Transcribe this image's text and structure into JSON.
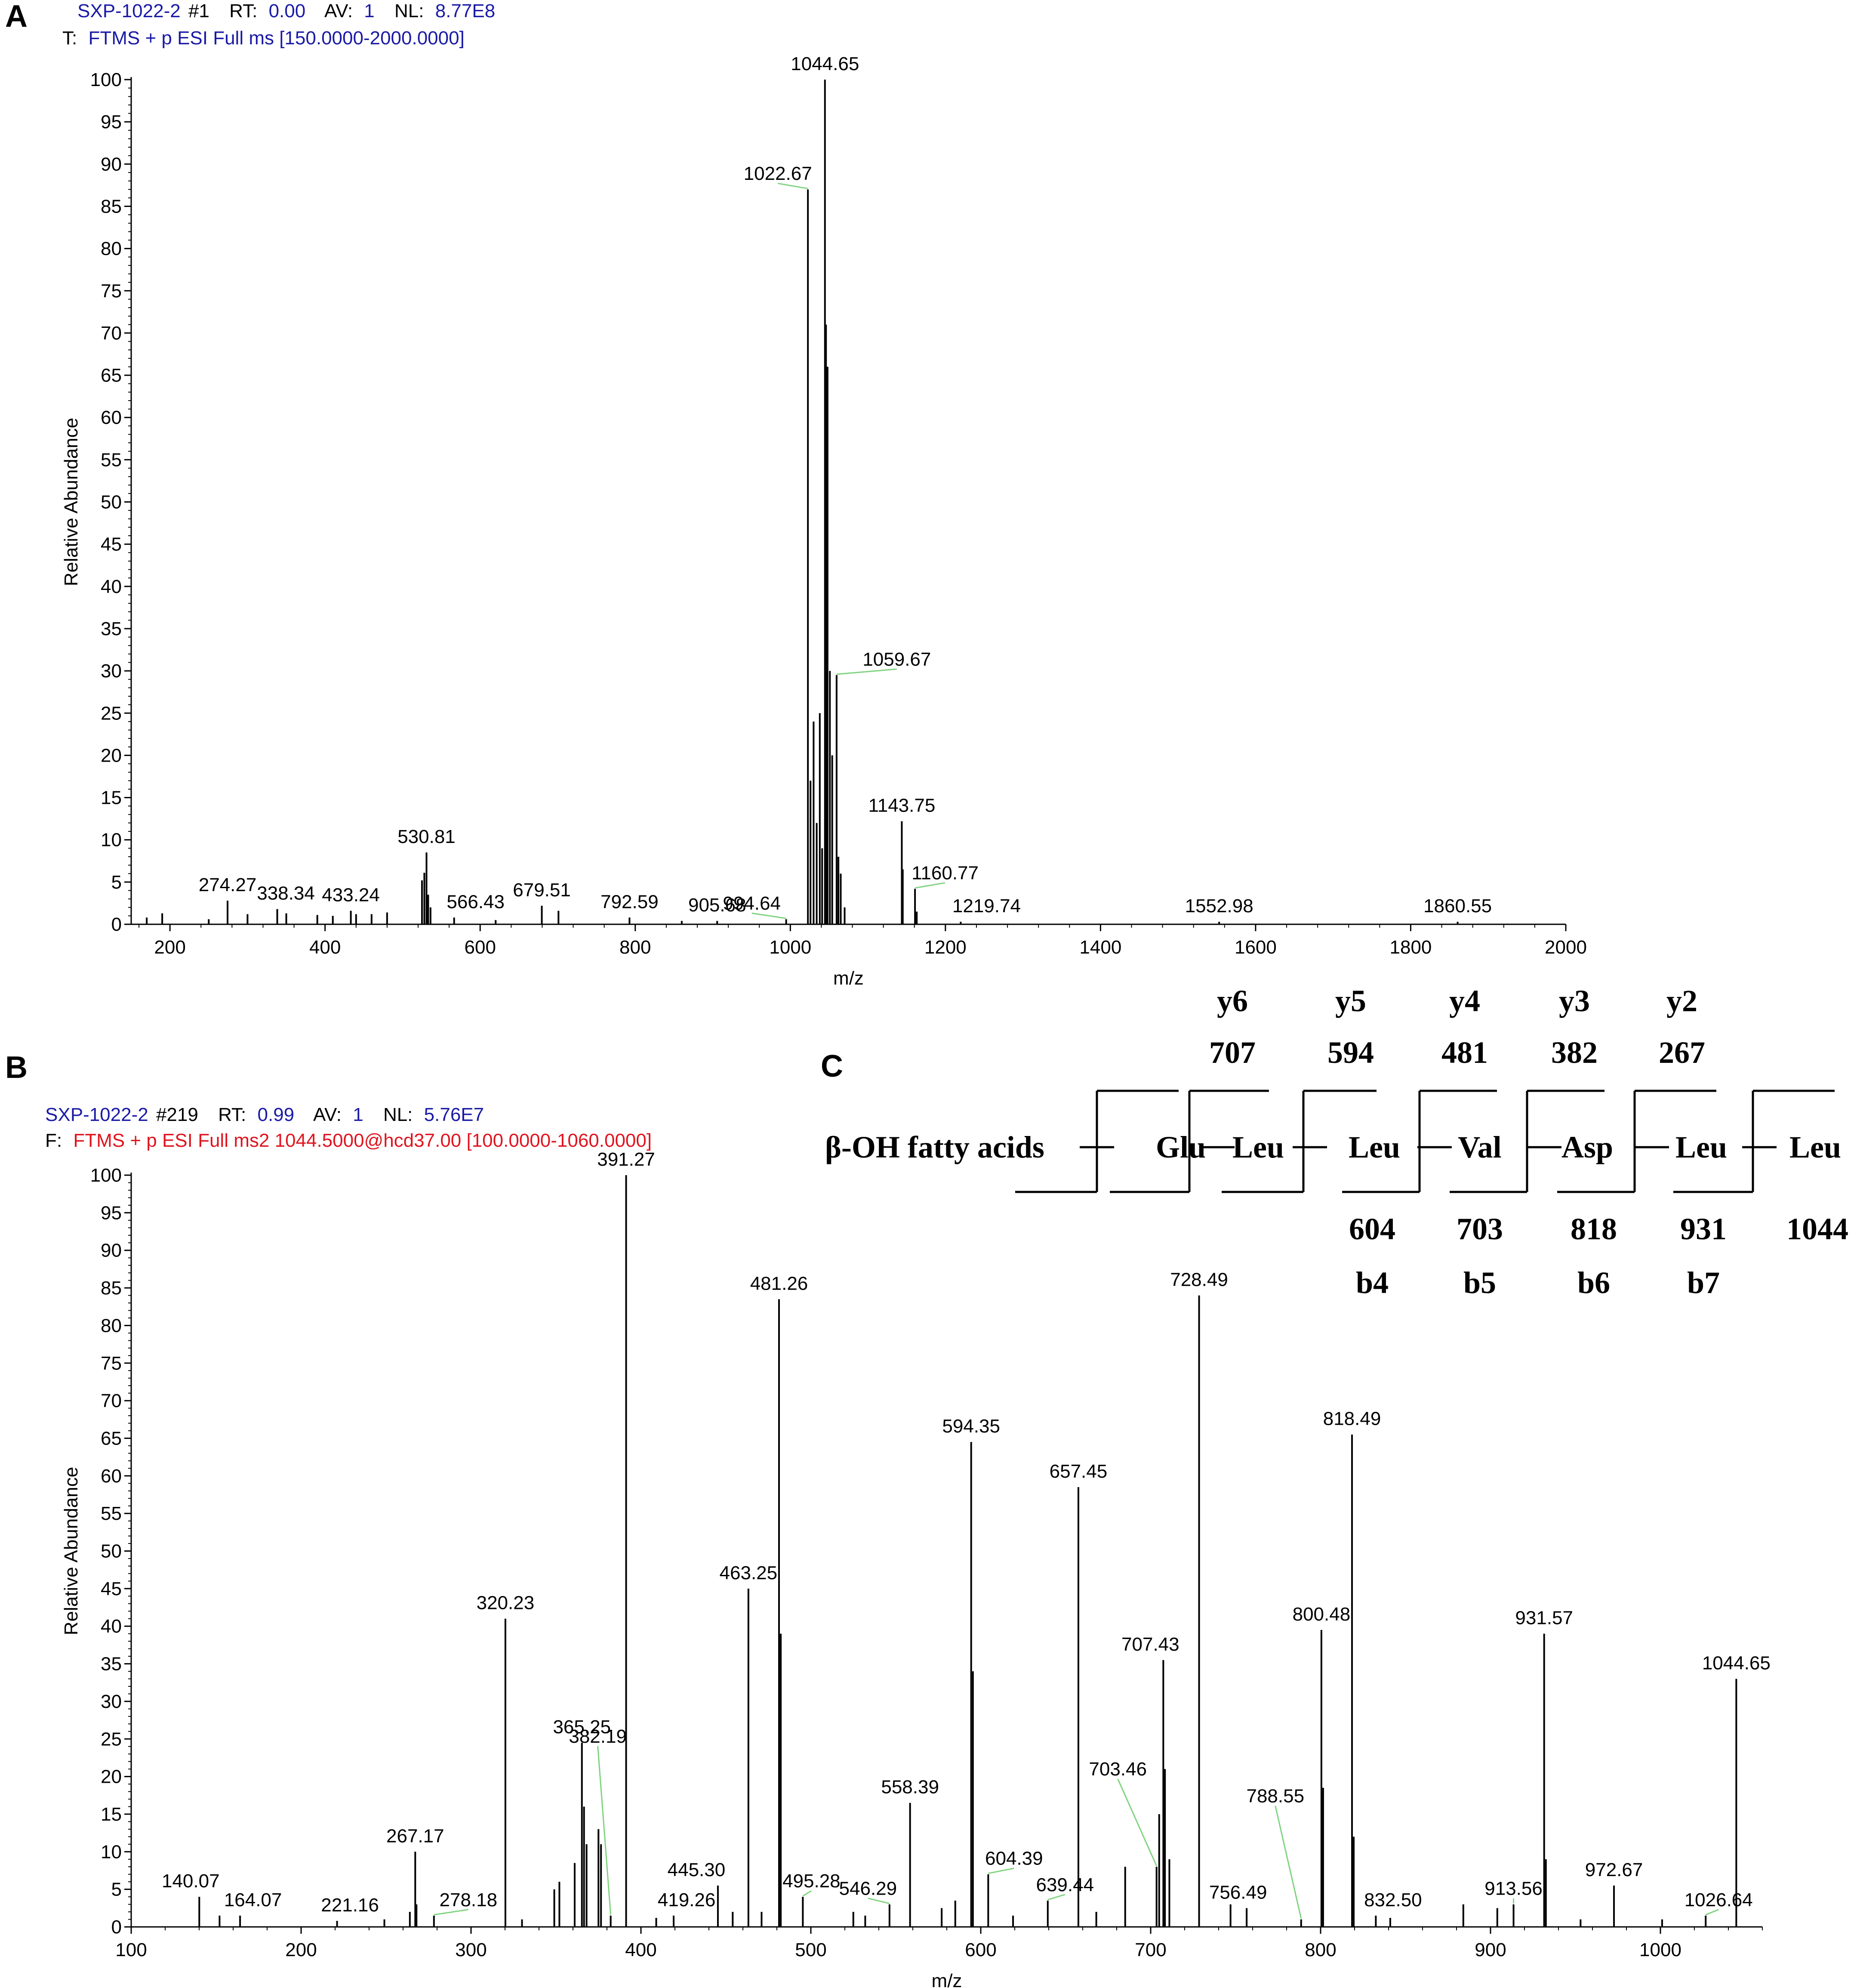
{
  "panels": {
    "a": "A",
    "b": "B",
    "c": "C"
  },
  "colors": {
    "header_blue": "#1a1aa6",
    "header_red": "#e0141e",
    "leader_green": "#7fd37f",
    "bar": "#000000"
  },
  "header_a": {
    "line1": {
      "scan": "SXP-1022-2",
      "scan_no": "#1",
      "rt_label": "RT:",
      "rt": "0.00",
      "av_label": "AV:",
      "av": "1",
      "nl_label": "NL:",
      "nl": "8.77E8"
    },
    "line2": {
      "prefix": "T:",
      "filter": "FTMS + p ESI Full ms [150.0000-2000.0000]"
    }
  },
  "header_b": {
    "line1": {
      "scan": "SXP-1022-2",
      "scan_no": "#219",
      "rt_label": "RT:",
      "rt": "0.99",
      "av_label": "AV:",
      "av": "1",
      "nl_label": "NL:",
      "nl": "5.76E7"
    },
    "line2": {
      "prefix": "F:",
      "filter": "FTMS + p ESI Full ms2 1044.5000@hcd37.00 [100.0000-1060.0000]"
    }
  },
  "chart_data": [
    {
      "panel": "A",
      "type": "bar",
      "xlabel": "m/z",
      "ylabel": "Relative Abundance",
      "xlim": [
        150,
        2000
      ],
      "ylim": [
        0,
        100
      ],
      "xticks": [
        200,
        400,
        600,
        800,
        1000,
        1200,
        1400,
        1600,
        1800,
        2000
      ],
      "yticks": [
        0,
        5,
        10,
        15,
        20,
        25,
        30,
        35,
        40,
        45,
        50,
        55,
        60,
        65,
        70,
        75,
        80,
        85,
        90,
        95,
        100
      ],
      "grid": false,
      "peaks": [
        {
          "mz": 1044.65,
          "intensity": 100,
          "label": "1044.65"
        },
        {
          "mz": 1022.67,
          "intensity": 87,
          "label": "1022.67"
        },
        {
          "mz": 1059.67,
          "intensity": 29.5,
          "label": "1059.67"
        },
        {
          "mz": 1143.75,
          "intensity": 12.2,
          "label": "1143.75"
        },
        {
          "mz": 1160.77,
          "intensity": 4.2,
          "label": "1160.77"
        },
        {
          "mz": 530.81,
          "intensity": 8.5,
          "label": "530.81"
        },
        {
          "mz": 274.27,
          "intensity": 2.8,
          "label": "274.27"
        },
        {
          "mz": 338.34,
          "intensity": 1.8,
          "label": "338.34"
        },
        {
          "mz": 433.24,
          "intensity": 1.6,
          "label": "433.24"
        },
        {
          "mz": 566.43,
          "intensity": 0.8,
          "label": "566.43"
        },
        {
          "mz": 679.51,
          "intensity": 2.2,
          "label": "679.51"
        },
        {
          "mz": 792.59,
          "intensity": 0.8,
          "label": "792.59"
        },
        {
          "mz": 905.68,
          "intensity": 0.4,
          "label": "905.68"
        },
        {
          "mz": 994.64,
          "intensity": 0.6,
          "label": "994.64"
        },
        {
          "mz": 1219.74,
          "intensity": 0.3,
          "label": "1219.74"
        },
        {
          "mz": 1552.98,
          "intensity": 0.3,
          "label": "1552.98"
        },
        {
          "mz": 1860.55,
          "intensity": 0.3,
          "label": "1860.55"
        },
        {
          "mz": 1030,
          "intensity": 24
        },
        {
          "mz": 1038,
          "intensity": 25
        },
        {
          "mz": 1046,
          "intensity": 71
        },
        {
          "mz": 1048,
          "intensity": 66
        },
        {
          "mz": 1051,
          "intensity": 30
        },
        {
          "mz": 1054,
          "intensity": 20
        },
        {
          "mz": 1026,
          "intensity": 17
        },
        {
          "mz": 1034,
          "intensity": 12
        },
        {
          "mz": 1041,
          "intensity": 9
        },
        {
          "mz": 1065,
          "intensity": 6
        },
        {
          "mz": 1062,
          "intensity": 8
        },
        {
          "mz": 1070,
          "intensity": 2
        },
        {
          "mz": 1145,
          "intensity": 6.5
        },
        {
          "mz": 1163,
          "intensity": 1.5
        },
        {
          "mz": 525,
          "intensity": 5.2
        },
        {
          "mz": 528,
          "intensity": 6.1
        },
        {
          "mz": 533,
          "intensity": 3.5
        },
        {
          "mz": 536,
          "intensity": 2
        },
        {
          "mz": 701,
          "intensity": 1.6
        },
        {
          "mz": 460,
          "intensity": 1.2
        },
        {
          "mz": 480,
          "intensity": 1.4
        },
        {
          "mz": 300,
          "intensity": 1.2
        },
        {
          "mz": 350,
          "intensity": 1.3
        },
        {
          "mz": 390,
          "intensity": 1.1
        },
        {
          "mz": 410,
          "intensity": 1.0
        },
        {
          "mz": 440,
          "intensity": 1.2
        },
        {
          "mz": 190,
          "intensity": 1.3
        },
        {
          "mz": 170,
          "intensity": 0.8
        },
        {
          "mz": 250,
          "intensity": 0.6
        },
        {
          "mz": 620,
          "intensity": 0.5
        },
        {
          "mz": 860,
          "intensity": 0.4
        }
      ]
    },
    {
      "panel": "B",
      "type": "bar",
      "xlabel": "m/z",
      "ylabel": "Relative Abundance",
      "xlim": [
        100,
        1060
      ],
      "ylim": [
        0,
        100
      ],
      "xticks": [
        100,
        200,
        300,
        400,
        500,
        600,
        700,
        800,
        900,
        1000
      ],
      "yticks": [
        0,
        5,
        10,
        15,
        20,
        25,
        30,
        35,
        40,
        45,
        50,
        55,
        60,
        65,
        70,
        75,
        80,
        85,
        90,
        95,
        100
      ],
      "grid": false,
      "peaks": [
        {
          "mz": 391.27,
          "intensity": 100,
          "label": "391.27"
        },
        {
          "mz": 481.26,
          "intensity": 83.5,
          "label": "481.26"
        },
        {
          "mz": 728.49,
          "intensity": 84,
          "label": "728.49"
        },
        {
          "mz": 818.49,
          "intensity": 65.5,
          "label": "818.49"
        },
        {
          "mz": 594.35,
          "intensity": 64.5,
          "label": "594.35"
        },
        {
          "mz": 657.45,
          "intensity": 58.5,
          "label": "657.45"
        },
        {
          "mz": 463.25,
          "intensity": 45,
          "label": "463.25"
        },
        {
          "mz": 320.23,
          "intensity": 41,
          "label": "320.23"
        },
        {
          "mz": 800.48,
          "intensity": 39.5,
          "label": "800.48"
        },
        {
          "mz": 931.57,
          "intensity": 39,
          "label": "931.57"
        },
        {
          "mz": 707.43,
          "intensity": 35.5,
          "label": "707.43"
        },
        {
          "mz": 1044.65,
          "intensity": 33,
          "label": "1044.65"
        },
        {
          "mz": 365.25,
          "intensity": 24.5,
          "label": "365.25"
        },
        {
          "mz": 558.39,
          "intensity": 16.5,
          "label": "558.39"
        },
        {
          "mz": 382.19,
          "intensity": 1.5,
          "label": "382.19"
        },
        {
          "mz": 703.46,
          "intensity": 8,
          "label": "703.46"
        },
        {
          "mz": 788.55,
          "intensity": 1,
          "label": "788.55"
        },
        {
          "mz": 267.17,
          "intensity": 10,
          "label": "267.17"
        },
        {
          "mz": 445.3,
          "intensity": 5.5,
          "label": "445.30"
        },
        {
          "mz": 546.29,
          "intensity": 3,
          "label": "546.29"
        },
        {
          "mz": 604.39,
          "intensity": 7,
          "label": "604.39"
        },
        {
          "mz": 639.44,
          "intensity": 3.5,
          "label": "639.44"
        },
        {
          "mz": 972.67,
          "intensity": 5.5,
          "label": "972.67"
        },
        {
          "mz": 913.56,
          "intensity": 3,
          "label": "913.56"
        },
        {
          "mz": 140.07,
          "intensity": 4,
          "label": "140.07"
        },
        {
          "mz": 164.07,
          "intensity": 1.5,
          "label": "164.07"
        },
        {
          "mz": 221.16,
          "intensity": 0.8,
          "label": "221.16"
        },
        {
          "mz": 278.18,
          "intensity": 1.5,
          "label": "278.18"
        },
        {
          "mz": 419.26,
          "intensity": 1.5,
          "label": "419.26"
        },
        {
          "mz": 495.28,
          "intensity": 4,
          "label": "495.28"
        },
        {
          "mz": 756.49,
          "intensity": 2.5,
          "label": "756.49"
        },
        {
          "mz": 832.5,
          "intensity": 1.5,
          "label": "832.50"
        },
        {
          "mz": 1026.64,
          "intensity": 1.5,
          "label": "1026.64"
        },
        {
          "mz": 366.5,
          "intensity": 16
        },
        {
          "mz": 368,
          "intensity": 11
        },
        {
          "mz": 375,
          "intensity": 13
        },
        {
          "mz": 376.5,
          "intensity": 11
        },
        {
          "mz": 361,
          "intensity": 8.5
        },
        {
          "mz": 352,
          "intensity": 6
        },
        {
          "mz": 349,
          "intensity": 5
        },
        {
          "mz": 482.3,
          "intensity": 39
        },
        {
          "mz": 595.4,
          "intensity": 34
        },
        {
          "mz": 708.4,
          "intensity": 21
        },
        {
          "mz": 705,
          "intensity": 15
        },
        {
          "mz": 711,
          "intensity": 9
        },
        {
          "mz": 801.5,
          "intensity": 18.5
        },
        {
          "mz": 819.5,
          "intensity": 12
        },
        {
          "mz": 932.6,
          "intensity": 9
        },
        {
          "mz": 685,
          "intensity": 8
        },
        {
          "mz": 747,
          "intensity": 3
        },
        {
          "mz": 884,
          "intensity": 3
        },
        {
          "mz": 904,
          "intensity": 2.5
        },
        {
          "mz": 267.9,
          "intensity": 3
        },
        {
          "mz": 264,
          "intensity": 2
        },
        {
          "mz": 585,
          "intensity": 3.5
        },
        {
          "mz": 577,
          "intensity": 2.5
        },
        {
          "mz": 454,
          "intensity": 2
        },
        {
          "mz": 471,
          "intensity": 2
        },
        {
          "mz": 525,
          "intensity": 2
        },
        {
          "mz": 532,
          "intensity": 1.5
        },
        {
          "mz": 668,
          "intensity": 2
        },
        {
          "mz": 152,
          "intensity": 1.5
        },
        {
          "mz": 249,
          "intensity": 1
        },
        {
          "mz": 330,
          "intensity": 1
        },
        {
          "mz": 409,
          "intensity": 1.2
        },
        {
          "mz": 619,
          "intensity": 1.5
        },
        {
          "mz": 841,
          "intensity": 1.2
        },
        {
          "mz": 953,
          "intensity": 1
        },
        {
          "mz": 1001,
          "intensity": 1
        }
      ]
    }
  ],
  "sequence": {
    "prefix": "β-OH fatty acids",
    "residues": [
      "Glu",
      "Leu",
      "Leu",
      "Val",
      "Asp",
      "Leu",
      "Leu"
    ],
    "y_ions": [
      {
        "label": "y6",
        "mass": "707"
      },
      {
        "label": "y5",
        "mass": "594"
      },
      {
        "label": "y4",
        "mass": "481"
      },
      {
        "label": "y3",
        "mass": "382"
      },
      {
        "label": "y2",
        "mass": "267"
      }
    ],
    "b_ions": [
      {
        "label": "b4",
        "mass": "604"
      },
      {
        "label": "b5",
        "mass": "703"
      },
      {
        "label": "b6",
        "mass": "818"
      },
      {
        "label": "b7",
        "mass": "931"
      }
    ],
    "precursor_mass": "1044"
  }
}
